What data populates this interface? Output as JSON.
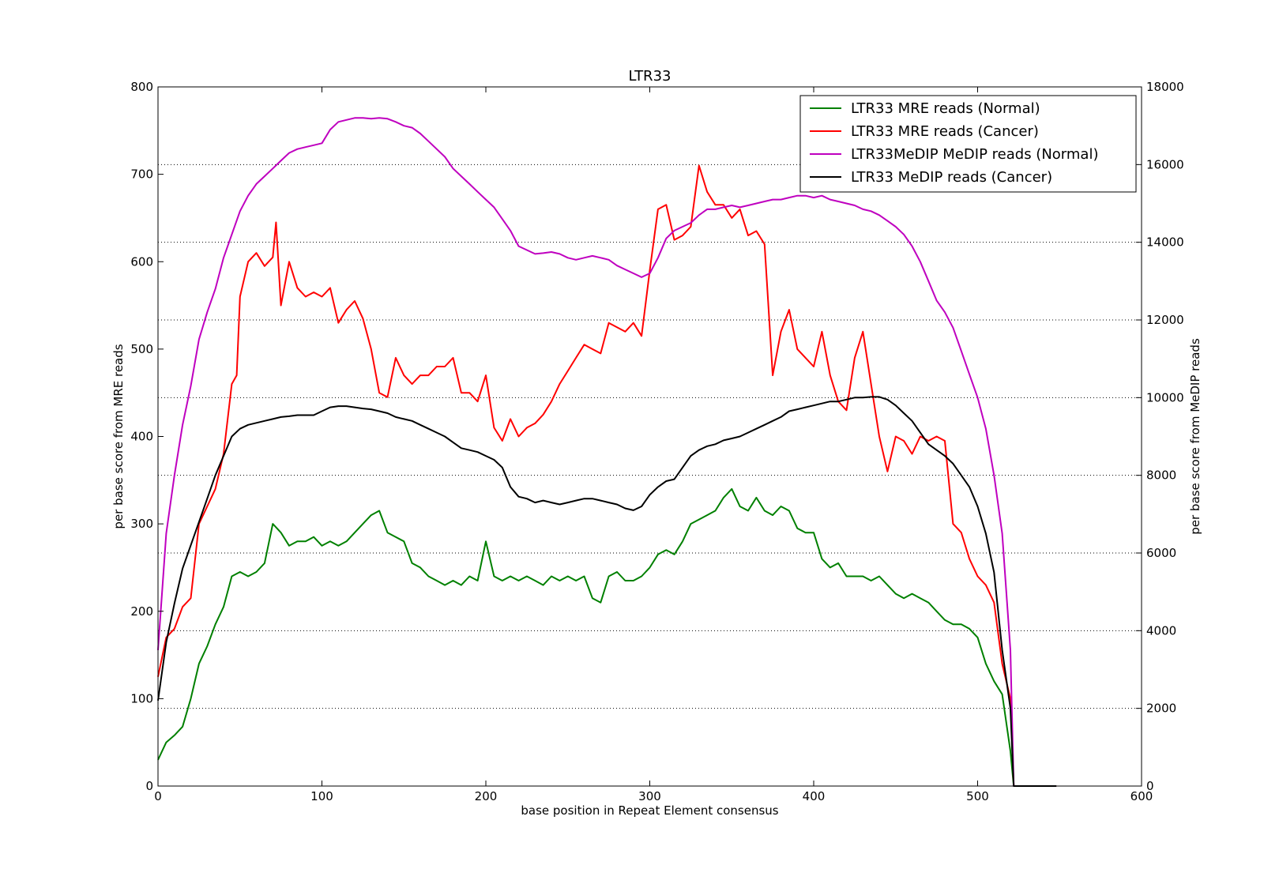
{
  "chart_data": {
    "type": "line",
    "title": "LTR33",
    "xlabel": "base position in Repeat Element consensus",
    "ylabel_left": "per base score from MRE reads",
    "ylabel_right": "per base score from MeDIP reads",
    "xlim": [
      0,
      600
    ],
    "ylim_left": [
      0,
      800
    ],
    "ylim_right": [
      0,
      18000
    ],
    "xticks": [
      0,
      100,
      200,
      300,
      400,
      500,
      600
    ],
    "yticks_left": [
      0,
      100,
      200,
      300,
      400,
      500,
      600,
      700,
      800
    ],
    "yticks_right": [
      0,
      2000,
      4000,
      6000,
      8000,
      10000,
      12000,
      14000,
      16000,
      18000
    ],
    "grid": "horizontal dotted at right-axis ticks",
    "legend_position": "top-right",
    "series": [
      {
        "name": "LTR33 MRE reads (Normal)",
        "color": "#008000",
        "axis": "left",
        "x": [
          0,
          5,
          10,
          15,
          20,
          25,
          30,
          35,
          40,
          45,
          50,
          55,
          60,
          65,
          70,
          75,
          80,
          85,
          90,
          95,
          100,
          105,
          110,
          115,
          120,
          125,
          130,
          135,
          140,
          145,
          150,
          155,
          160,
          165,
          170,
          175,
          180,
          185,
          190,
          195,
          200,
          205,
          210,
          215,
          220,
          225,
          230,
          235,
          240,
          245,
          250,
          255,
          260,
          265,
          270,
          275,
          280,
          285,
          290,
          295,
          300,
          305,
          310,
          315,
          320,
          325,
          330,
          335,
          340,
          345,
          350,
          355,
          360,
          365,
          370,
          375,
          380,
          385,
          390,
          395,
          400,
          405,
          410,
          415,
          420,
          425,
          430,
          435,
          440,
          445,
          450,
          455,
          460,
          465,
          470,
          475,
          480,
          485,
          490,
          495,
          500,
          505,
          510,
          515,
          520,
          522,
          525,
          548
        ],
        "y": [
          30,
          50,
          58,
          68,
          100,
          140,
          160,
          185,
          205,
          240,
          245,
          240,
          245,
          255,
          300,
          290,
          275,
          280,
          280,
          285,
          275,
          280,
          275,
          280,
          290,
          300,
          310,
          315,
          290,
          285,
          280,
          255,
          250,
          240,
          235,
          230,
          235,
          230,
          240,
          235,
          280,
          240,
          235,
          240,
          235,
          240,
          235,
          230,
          240,
          235,
          240,
          235,
          240,
          215,
          210,
          240,
          245,
          235,
          235,
          240,
          250,
          265,
          270,
          265,
          280,
          300,
          305,
          310,
          315,
          330,
          340,
          320,
          315,
          330,
          315,
          310,
          320,
          315,
          295,
          290,
          290,
          260,
          250,
          255,
          240,
          240,
          240,
          235,
          240,
          230,
          220,
          215,
          220,
          215,
          210,
          200,
          190,
          185,
          185,
          180,
          170,
          140,
          120,
          105,
          40,
          0,
          0,
          0
        ]
      },
      {
        "name": "LTR33 MRE reads (Cancer)",
        "color": "#ff0000",
        "axis": "left",
        "x": [
          0,
          5,
          10,
          15,
          20,
          25,
          30,
          35,
          40,
          45,
          48,
          50,
          55,
          60,
          65,
          70,
          72,
          75,
          80,
          85,
          90,
          95,
          100,
          105,
          110,
          115,
          120,
          125,
          130,
          135,
          140,
          145,
          150,
          155,
          160,
          165,
          170,
          175,
          180,
          185,
          190,
          195,
          200,
          205,
          210,
          215,
          220,
          225,
          230,
          235,
          240,
          245,
          250,
          255,
          260,
          265,
          270,
          275,
          280,
          285,
          290,
          295,
          300,
          305,
          310,
          315,
          320,
          325,
          330,
          335,
          340,
          345,
          350,
          355,
          360,
          365,
          370,
          375,
          380,
          385,
          390,
          395,
          400,
          405,
          410,
          415,
          420,
          425,
          430,
          435,
          440,
          445,
          450,
          455,
          460,
          465,
          470,
          475,
          480,
          485,
          490,
          495,
          500,
          505,
          510,
          515,
          520,
          522,
          525,
          548
        ],
        "y": [
          125,
          170,
          180,
          205,
          215,
          300,
          320,
          340,
          380,
          460,
          470,
          560,
          600,
          610,
          595,
          605,
          645,
          550,
          600,
          570,
          560,
          565,
          560,
          570,
          530,
          545,
          555,
          535,
          500,
          450,
          445,
          490,
          470,
          460,
          470,
          470,
          480,
          480,
          490,
          450,
          450,
          440,
          470,
          410,
          395,
          420,
          400,
          410,
          415,
          425,
          440,
          460,
          475,
          490,
          505,
          500,
          495,
          530,
          525,
          520,
          530,
          515,
          590,
          660,
          665,
          625,
          630,
          640,
          710,
          680,
          665,
          665,
          650,
          660,
          630,
          635,
          620,
          470,
          520,
          545,
          500,
          490,
          480,
          520,
          470,
          440,
          430,
          490,
          520,
          460,
          400,
          360,
          400,
          395,
          380,
          400,
          395,
          400,
          395,
          300,
          290,
          260,
          240,
          230,
          210,
          140,
          100,
          0,
          0,
          0
        ]
      },
      {
        "name": "LTR33MeDIP MeDIP reads (Normal)",
        "color": "#bf00bf",
        "axis": "right",
        "x": [
          0,
          5,
          10,
          15,
          20,
          25,
          30,
          35,
          40,
          45,
          50,
          55,
          60,
          65,
          70,
          75,
          80,
          85,
          90,
          95,
          100,
          105,
          110,
          115,
          120,
          125,
          130,
          135,
          140,
          145,
          150,
          155,
          160,
          165,
          170,
          175,
          180,
          185,
          190,
          195,
          200,
          205,
          210,
          215,
          220,
          225,
          230,
          235,
          240,
          245,
          250,
          255,
          260,
          265,
          270,
          275,
          280,
          285,
          290,
          295,
          300,
          305,
          310,
          315,
          320,
          325,
          330,
          335,
          340,
          345,
          350,
          355,
          360,
          365,
          370,
          375,
          380,
          385,
          390,
          395,
          400,
          405,
          410,
          415,
          420,
          425,
          430,
          435,
          440,
          445,
          450,
          455,
          460,
          465,
          470,
          475,
          480,
          485,
          490,
          495,
          500,
          505,
          510,
          515,
          520,
          522,
          525,
          548
        ],
        "y": [
          3500,
          6500,
          8000,
          9300,
          10300,
          11500,
          12200,
          12800,
          13600,
          14200,
          14800,
          15200,
          15500,
          15700,
          15900,
          16100,
          16300,
          16400,
          16450,
          16500,
          16550,
          16900,
          17100,
          17150,
          17200,
          17200,
          17180,
          17200,
          17180,
          17100,
          17000,
          16950,
          16800,
          16600,
          16400,
          16200,
          15900,
          15700,
          15500,
          15300,
          15100,
          14900,
          14600,
          14300,
          13900,
          13800,
          13700,
          13720,
          13750,
          13700,
          13600,
          13550,
          13600,
          13650,
          13600,
          13550,
          13400,
          13300,
          13200,
          13100,
          13200,
          13600,
          14100,
          14300,
          14400,
          14500,
          14700,
          14850,
          14850,
          14900,
          14950,
          14900,
          14950,
          15000,
          15050,
          15100,
          15100,
          15150,
          15200,
          15200,
          15150,
          15200,
          15100,
          15050,
          15000,
          14950,
          14850,
          14800,
          14700,
          14550,
          14400,
          14200,
          13900,
          13500,
          13000,
          12500,
          12200,
          11800,
          11200,
          10600,
          10000,
          9200,
          8000,
          6500,
          3500,
          0,
          0,
          0
        ]
      },
      {
        "name": "LTR33 MeDIP reads (Cancer)",
        "color": "#000000",
        "axis": "right",
        "x": [
          0,
          5,
          10,
          15,
          20,
          25,
          30,
          35,
          40,
          45,
          50,
          55,
          60,
          65,
          70,
          75,
          80,
          85,
          90,
          95,
          100,
          105,
          110,
          115,
          120,
          125,
          130,
          135,
          140,
          145,
          150,
          155,
          160,
          165,
          170,
          175,
          180,
          185,
          190,
          195,
          200,
          205,
          210,
          215,
          220,
          225,
          230,
          235,
          240,
          245,
          250,
          255,
          260,
          265,
          270,
          275,
          280,
          285,
          290,
          295,
          300,
          305,
          310,
          315,
          320,
          325,
          330,
          335,
          340,
          345,
          350,
          355,
          360,
          365,
          370,
          375,
          380,
          385,
          390,
          395,
          400,
          405,
          410,
          415,
          420,
          425,
          430,
          435,
          440,
          445,
          450,
          455,
          460,
          465,
          470,
          475,
          480,
          485,
          490,
          495,
          500,
          505,
          510,
          515,
          520,
          522,
          525,
          548
        ],
        "y": [
          2200,
          3700,
          4700,
          5600,
          6200,
          6800,
          7400,
          8000,
          8500,
          9000,
          9200,
          9300,
          9350,
          9400,
          9450,
          9500,
          9520,
          9550,
          9550,
          9550,
          9650,
          9750,
          9780,
          9780,
          9750,
          9720,
          9700,
          9650,
          9600,
          9500,
          9450,
          9400,
          9300,
          9200,
          9100,
          9000,
          8850,
          8700,
          8650,
          8600,
          8500,
          8400,
          8200,
          7700,
          7450,
          7400,
          7300,
          7350,
          7300,
          7250,
          7300,
          7350,
          7400,
          7400,
          7350,
          7300,
          7250,
          7150,
          7100,
          7200,
          7500,
          7700,
          7850,
          7900,
          8200,
          8500,
          8650,
          8750,
          8800,
          8900,
          8950,
          9000,
          9100,
          9200,
          9300,
          9400,
          9500,
          9650,
          9700,
          9750,
          9800,
          9850,
          9900,
          9900,
          9950,
          10000,
          10000,
          10020,
          10020,
          9950,
          9800,
          9600,
          9400,
          9100,
          8800,
          8650,
          8500,
          8300,
          8000,
          7700,
          7200,
          6500,
          5500,
          3500,
          2000,
          0,
          0,
          0
        ]
      }
    ]
  }
}
